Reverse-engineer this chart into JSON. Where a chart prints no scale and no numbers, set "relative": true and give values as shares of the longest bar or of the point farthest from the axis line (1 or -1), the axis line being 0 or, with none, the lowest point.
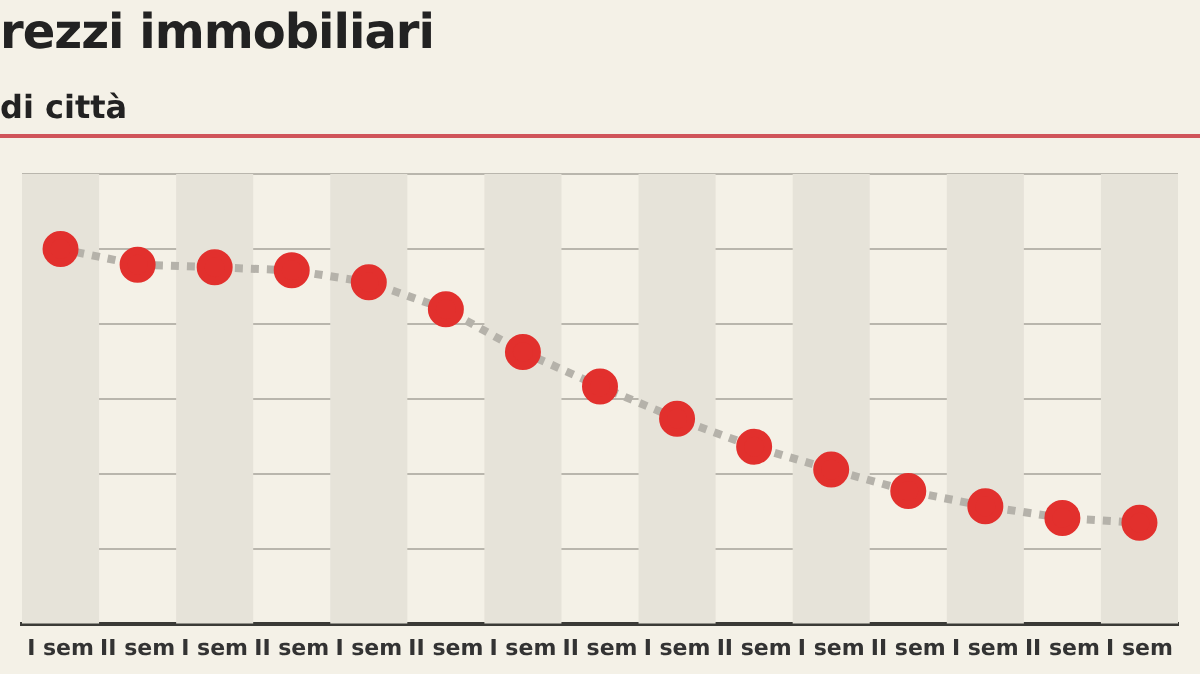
{
  "chart_data": {
    "type": "line",
    "title": "rezzi immobiliari",
    "subtitle": "di città",
    "categories": [
      "I sem",
      "II sem",
      "I sem",
      "II sem",
      "I sem",
      "II sem",
      "I sem",
      "II sem",
      "I sem",
      "II sem",
      "I sem",
      "II sem",
      "I sem",
      "II sem",
      "I sem"
    ],
    "series": [
      {
        "color": "#e2302d",
        "values": [
          1,
          0.958,
          0.951,
          0.943,
          0.911,
          0.839,
          0.725,
          0.633,
          0.547,
          0.472,
          0.411,
          0.354,
          0.313,
          0.282,
          0.269
        ]
      }
    ],
    "relative": true,
    "grid": "y",
    "legend": false,
    "marker": "circle",
    "line_style": "dotted"
  }
}
